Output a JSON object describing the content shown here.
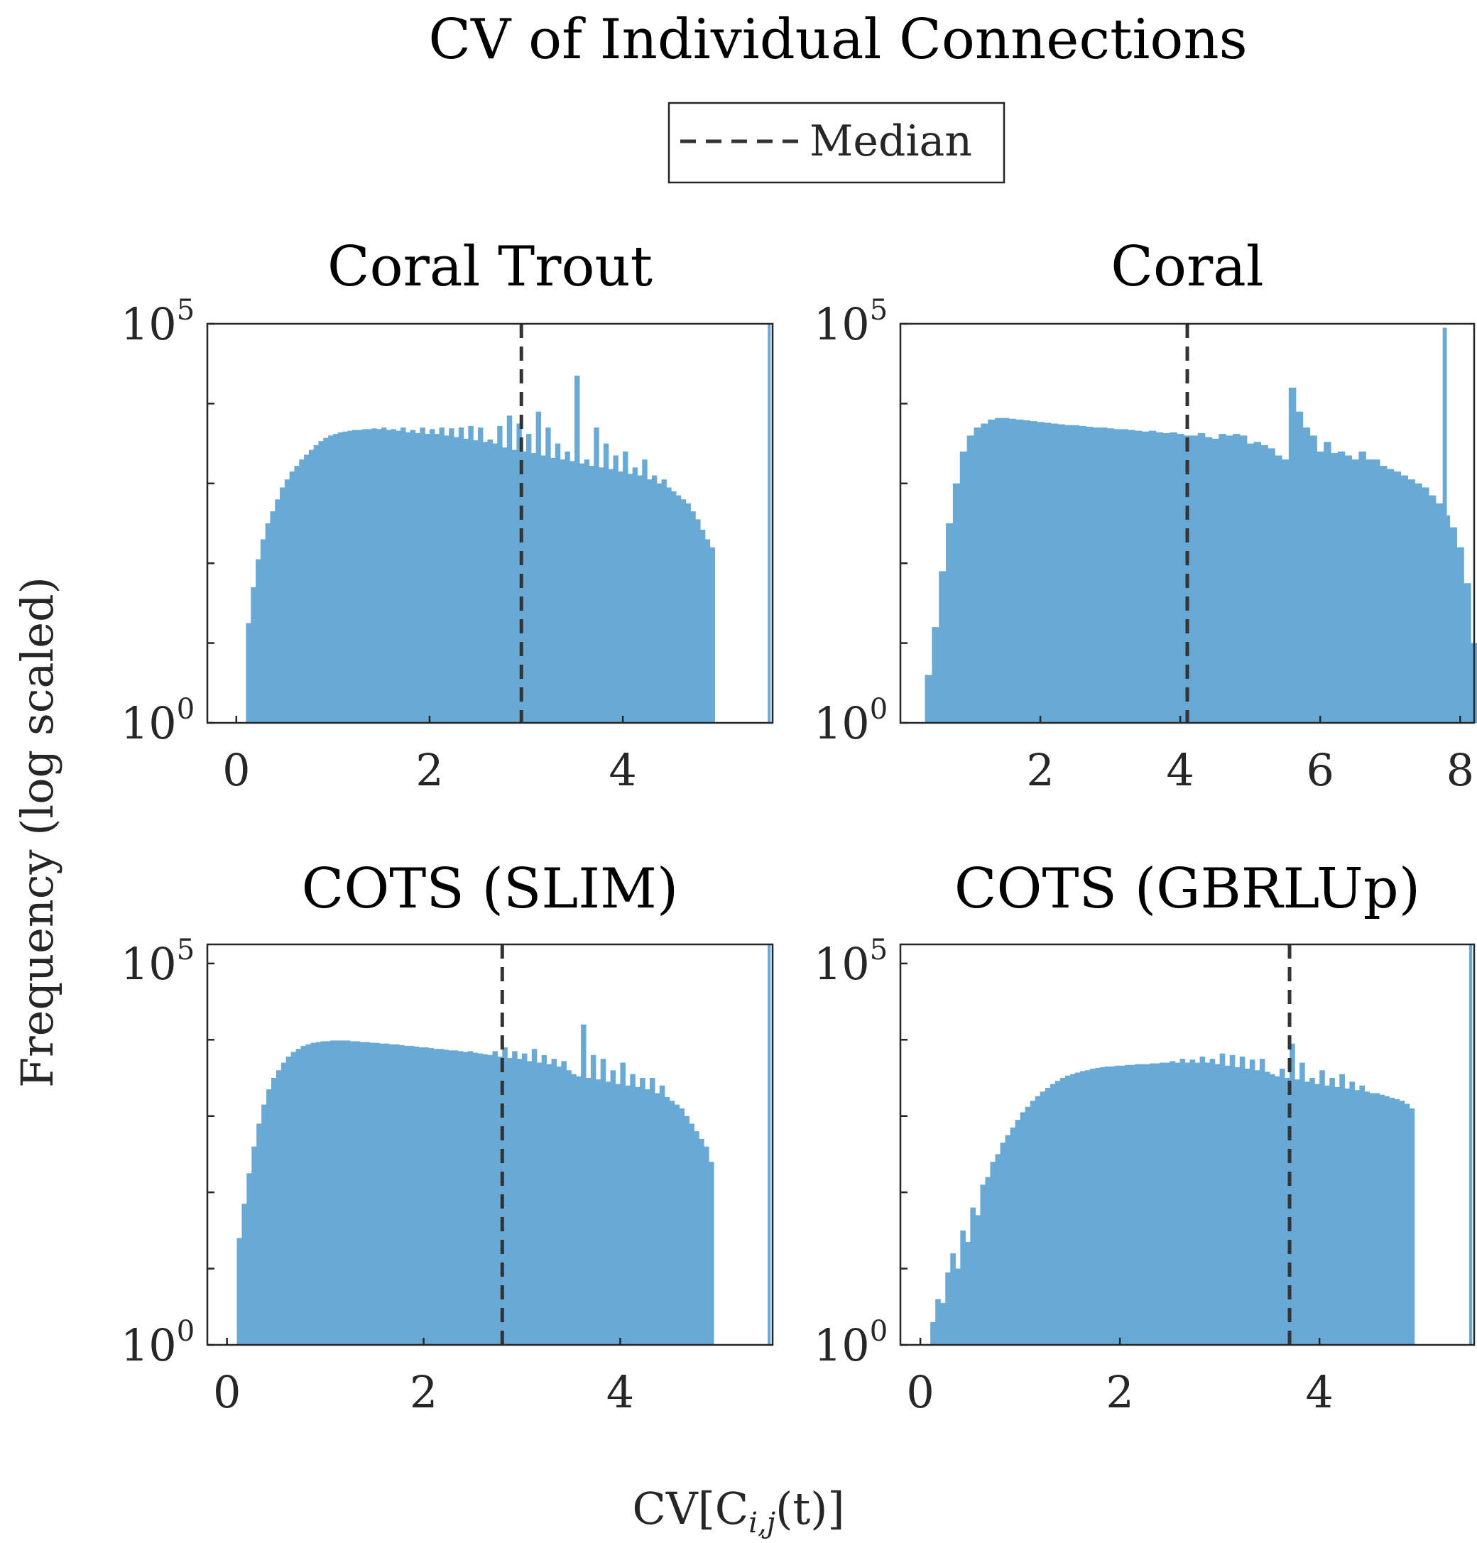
{
  "figure": {
    "title": "CV of Individual Connections",
    "ylabel": "Frequency (log scaled)",
    "xlabel": "CV[C",
    "xlabel_sub": "i,j",
    "xlabel_tail": "(t)]"
  },
  "legend": {
    "label": "Median",
    "placement": "top-center",
    "line_style": "dashed"
  },
  "colors": {
    "bar": "#68A9D6",
    "median_line": "#333333",
    "axis": "#262626"
  },
  "chart_data": [
    {
      "type": "bar",
      "title": "Coral Trout",
      "yscale": "log",
      "xlim": [
        -0.3,
        5.55
      ],
      "ylim_log10": [
        0,
        5
      ],
      "x_ticks": [
        0,
        2,
        4
      ],
      "x_tick_labels": [
        "0",
        "2",
        "4"
      ],
      "y_tick_labels": [
        {
          "base": "10",
          "exp": "0",
          "value": 1
        },
        {
          "base": "10",
          "exp": "5",
          "value": 100000
        }
      ],
      "median": 2.95,
      "bin_start": 0.1,
      "bin_width": 0.05,
      "last_bar": {
        "x": 5.5,
        "log10_value": 5.0
      },
      "log10_values": [
        1.25,
        1.7,
        2.05,
        2.3,
        2.5,
        2.65,
        2.8,
        2.95,
        3.05,
        3.15,
        3.22,
        3.3,
        3.36,
        3.42,
        3.48,
        3.53,
        3.57,
        3.6,
        3.62,
        3.64,
        3.65,
        3.66,
        3.67,
        3.67,
        3.68,
        3.68,
        3.69,
        3.68,
        3.7,
        3.67,
        3.68,
        3.66,
        3.7,
        3.64,
        3.67,
        3.63,
        3.7,
        3.62,
        3.68,
        3.62,
        3.7,
        3.6,
        3.69,
        3.58,
        3.7,
        3.56,
        3.72,
        3.54,
        3.7,
        3.52,
        3.55,
        3.5,
        3.72,
        3.45,
        3.85,
        3.42,
        3.75,
        3.4,
        3.62,
        3.38,
        3.9,
        3.35,
        3.7,
        3.32,
        3.5,
        3.3,
        3.4,
        3.28,
        4.35,
        3.25,
        3.3,
        3.22,
        3.7,
        3.2,
        3.5,
        3.18,
        3.35,
        3.15,
        3.4,
        3.12,
        3.2,
        3.1,
        3.3,
        3.05,
        3.1,
        3.0,
        3.05,
        2.95,
        2.9,
        2.85,
        2.8,
        2.75,
        2.65,
        2.55,
        2.42,
        2.3,
        2.2
      ]
    },
    {
      "type": "bar",
      "title": "Coral",
      "yscale": "log",
      "xlim": [
        0,
        8.2
      ],
      "ylim_log10": [
        0,
        5
      ],
      "x_ticks": [
        2,
        4,
        6,
        8
      ],
      "x_tick_labels": [
        "2",
        "4",
        "6",
        "8"
      ],
      "y_tick_labels": [
        {
          "base": "10",
          "exp": "0",
          "value": 1
        },
        {
          "base": "10",
          "exp": "5",
          "value": 100000
        }
      ],
      "median": 4.1,
      "bin_start": 0.35,
      "bin_width": 0.1,
      "last_bar": {
        "x": 7.75,
        "log10_value": 4.95
      },
      "log10_values": [
        0.6,
        1.2,
        1.9,
        2.5,
        3.0,
        3.4,
        3.6,
        3.7,
        3.75,
        3.8,
        3.82,
        3.82,
        3.81,
        3.8,
        3.79,
        3.78,
        3.77,
        3.76,
        3.75,
        3.74,
        3.73,
        3.73,
        3.72,
        3.71,
        3.7,
        3.7,
        3.69,
        3.68,
        3.68,
        3.67,
        3.66,
        3.65,
        3.66,
        3.64,
        3.63,
        3.64,
        3.62,
        3.6,
        3.6,
        3.63,
        3.58,
        3.56,
        3.62,
        3.6,
        3.62,
        3.6,
        3.5,
        3.52,
        3.48,
        3.44,
        3.35,
        3.3,
        4.2,
        3.9,
        3.7,
        3.6,
        3.4,
        3.52,
        3.38,
        3.4,
        3.35,
        3.3,
        3.4,
        3.3,
        3.3,
        3.22,
        3.18,
        3.15,
        3.1,
        3.05,
        3.0,
        2.95,
        2.85,
        2.75,
        2.6,
        2.45,
        2.2,
        1.75,
        1.0,
        0.45
      ]
    },
    {
      "type": "bar",
      "title": "COTS (SLIM)",
      "yscale": "log",
      "xlim": [
        -0.2,
        5.55
      ],
      "ylim_log10": [
        0,
        5.25
      ],
      "x_ticks": [
        0,
        2,
        4
      ],
      "x_tick_labels": [
        "0",
        "2",
        "4"
      ],
      "y_tick_labels": [
        {
          "base": "10",
          "exp": "0",
          "value": 1
        },
        {
          "base": "10",
          "exp": "5",
          "value": 100000
        }
      ],
      "median": 2.8,
      "bin_start": 0.1,
      "bin_width": 0.05,
      "last_bar": {
        "x": 5.5,
        "log10_value": 5.25
      },
      "log10_values": [
        1.4,
        1.85,
        2.25,
        2.6,
        2.9,
        3.15,
        3.35,
        3.5,
        3.6,
        3.7,
        3.78,
        3.84,
        3.88,
        3.92,
        3.94,
        3.96,
        3.97,
        3.98,
        3.98,
        3.99,
        3.99,
        3.99,
        3.99,
        3.98,
        3.98,
        3.97,
        3.97,
        3.96,
        3.96,
        3.95,
        3.95,
        3.94,
        3.94,
        3.93,
        3.92,
        3.92,
        3.91,
        3.9,
        3.9,
        3.89,
        3.88,
        3.88,
        3.87,
        3.86,
        3.86,
        3.85,
        3.84,
        3.85,
        3.83,
        3.82,
        3.81,
        3.8,
        3.85,
        3.78,
        3.9,
        3.76,
        3.85,
        3.75,
        3.82,
        3.72,
        3.88,
        3.7,
        3.8,
        3.68,
        3.75,
        3.65,
        3.72,
        3.6,
        3.55,
        3.52,
        4.2,
        3.5,
        3.8,
        3.48,
        3.75,
        3.45,
        3.6,
        3.42,
        3.7,
        3.4,
        3.55,
        3.38,
        3.5,
        3.35,
        3.5,
        3.3,
        3.4,
        3.25,
        3.2,
        3.15,
        3.1,
        3.0,
        2.9,
        2.8,
        2.7,
        2.6,
        2.4
      ]
    },
    {
      "type": "bar",
      "title": "COTS (GBRLUp)",
      "yscale": "log",
      "xlim": [
        -0.2,
        5.55
      ],
      "ylim_log10": [
        0,
        5.25
      ],
      "x_ticks": [
        0,
        2,
        4
      ],
      "x_tick_labels": [
        "0",
        "2",
        "4"
      ],
      "y_tick_labels": [
        {
          "base": "10",
          "exp": "0",
          "value": 1
        },
        {
          "base": "10",
          "exp": "5",
          "value": 100000
        }
      ],
      "median": 3.7,
      "bin_start": 0.1,
      "bin_width": 0.05,
      "last_bar": {
        "x": 5.5,
        "log10_value": 5.25
      },
      "log10_values": [
        0.3,
        0.6,
        0.55,
        0.95,
        1.2,
        1.0,
        1.5,
        1.35,
        1.8,
        1.7,
        2.1,
        2.2,
        2.4,
        2.5,
        2.65,
        2.75,
        2.85,
        2.95,
        3.05,
        3.12,
        3.2,
        3.26,
        3.32,
        3.37,
        3.42,
        3.46,
        3.5,
        3.53,
        3.55,
        3.57,
        3.59,
        3.6,
        3.62,
        3.63,
        3.64,
        3.65,
        3.65,
        3.66,
        3.66,
        3.67,
        3.67,
        3.68,
        3.68,
        3.68,
        3.69,
        3.69,
        3.7,
        3.7,
        3.72,
        3.7,
        3.75,
        3.7,
        3.74,
        3.7,
        3.78,
        3.7,
        3.75,
        3.68,
        3.82,
        3.66,
        3.8,
        3.64,
        3.78,
        3.62,
        3.74,
        3.6,
        3.75,
        3.58,
        3.55,
        3.52,
        3.62,
        3.5,
        3.95,
        3.48,
        3.7,
        3.45,
        3.5,
        3.42,
        3.6,
        3.4,
        3.5,
        3.38,
        3.55,
        3.36,
        3.45,
        3.34,
        3.4,
        3.32,
        3.3,
        3.3,
        3.28,
        3.26,
        3.24,
        3.22,
        3.2,
        3.16,
        3.1
      ]
    }
  ]
}
